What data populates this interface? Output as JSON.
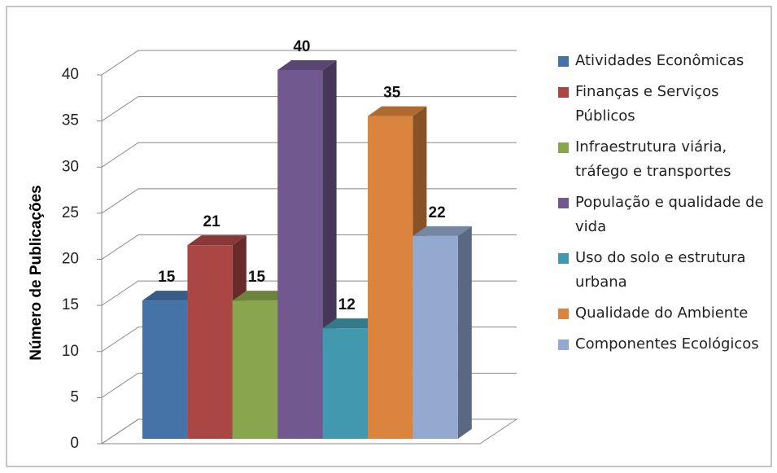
{
  "chart_data": {
    "type": "bar3d",
    "y_axis_label": "Número de Publicações",
    "ylim": [
      0,
      40
    ],
    "yticks": [
      0,
      5,
      10,
      15,
      20,
      25,
      30,
      35,
      40
    ],
    "grid": true,
    "legend_position": "right",
    "series": [
      {
        "name": "Atividades Econômicas",
        "color": "#4573a7",
        "values": [
          15
        ]
      },
      {
        "name": "Finanças e Serviços Públicos",
        "color": "#aa4643",
        "values": [
          21
        ]
      },
      {
        "name": "Infraestrutura viária, tráfego e transportes",
        "color": "#89a54e",
        "values": [
          15
        ]
      },
      {
        "name": "População e qualidade de vida",
        "color": "#71588f",
        "values": [
          40
        ]
      },
      {
        "name": "Uso do solo e estrutura urbana",
        "color": "#4198af",
        "values": [
          12
        ]
      },
      {
        "name": "Qualidade do Ambiente",
        "color": "#db843d",
        "values": [
          35
        ]
      },
      {
        "name": "Componentes Ecológicos",
        "color": "#93a9cf",
        "values": [
          22
        ]
      }
    ]
  }
}
